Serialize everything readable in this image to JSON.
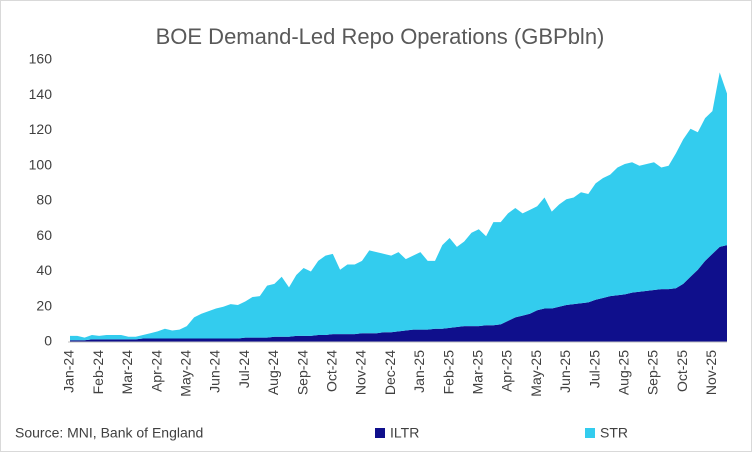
{
  "chart_data": {
    "type": "stacked-area",
    "title": "BOE Demand-Led Repo Operations (GBPbln)",
    "source": "Source: MNI, Bank of England",
    "categories": [
      "Jan-24",
      null,
      null,
      null,
      "Feb-24",
      null,
      null,
      null,
      "Mar-24",
      null,
      null,
      null,
      "Apr-24",
      null,
      null,
      null,
      "May-24",
      null,
      null,
      null,
      "Jun-24",
      null,
      null,
      null,
      "Jul-24",
      null,
      null,
      null,
      "Aug-24",
      null,
      null,
      null,
      "Sep-24",
      null,
      null,
      null,
      "Oct-24",
      null,
      null,
      null,
      "Nov-24",
      null,
      null,
      null,
      "Dec-24",
      null,
      null,
      null,
      "Jan-25",
      null,
      null,
      null,
      "Feb-25",
      null,
      null,
      null,
      "Mar-25",
      null,
      null,
      null,
      "Apr-25",
      null,
      null,
      null,
      "May-25",
      null,
      null,
      null,
      "Jun-25",
      null,
      null,
      null,
      "Jul-25",
      null,
      null,
      null,
      "Aug-25",
      null,
      null,
      null,
      "Sep-25",
      null,
      null,
      null,
      "Oct-25",
      null,
      null,
      null,
      "Nov-25",
      null,
      null
    ],
    "series": [
      {
        "name": "ILTR",
        "color": "#0f0f8c",
        "values": [
          1,
          1,
          1,
          1.5,
          1.5,
          1.5,
          1.5,
          1.5,
          1.5,
          1.5,
          2,
          2,
          2,
          2,
          2,
          2,
          2,
          2,
          2,
          2,
          2,
          2,
          2,
          2,
          2.5,
          2.5,
          2.5,
          2.5,
          3,
          3,
          3,
          3.5,
          3.5,
          3.5,
          4,
          4,
          4.5,
          4.5,
          4.5,
          4.5,
          5,
          5,
          5,
          5.5,
          5.5,
          6,
          6.5,
          7,
          7,
          7,
          7.5,
          7.5,
          8,
          8.5,
          9,
          9,
          9,
          9.5,
          9.5,
          10,
          12,
          14,
          15,
          16,
          18,
          19,
          19,
          20,
          21,
          21.5,
          22,
          22.5,
          24,
          25,
          26,
          26.5,
          27,
          28,
          28.5,
          29,
          29.5,
          30,
          30,
          30.5,
          33,
          37,
          41,
          46,
          50,
          54,
          55
        ]
      },
      {
        "name": "STR",
        "color": "#33ccee",
        "values": [
          2.5,
          2.5,
          1.5,
          2.5,
          2,
          2.5,
          2.5,
          2.5,
          1.5,
          1.5,
          2,
          3,
          4,
          5.5,
          4.5,
          5,
          7,
          12,
          14,
          15.5,
          17,
          18,
          19.5,
          19,
          20.5,
          23,
          23.5,
          29.5,
          30,
          34,
          28,
          34.5,
          38.5,
          36.5,
          42,
          45,
          45.5,
          36.5,
          39.5,
          39.5,
          41,
          47,
          46,
          44.5,
          43.5,
          45,
          40.5,
          42,
          44,
          39,
          38.5,
          47.5,
          51,
          45.5,
          48,
          53,
          55,
          50.5,
          58.5,
          58,
          61,
          62,
          58,
          59,
          59,
          63,
          55,
          58,
          60,
          60.5,
          63,
          61.5,
          66,
          68,
          69,
          72.5,
          74,
          74,
          71.5,
          72,
          72.5,
          69,
          70,
          76.5,
          82,
          84,
          78,
          81,
          81,
          99,
          86
        ]
      }
    ],
    "ylim": [
      0,
      160
    ],
    "yticks": [
      0,
      20,
      40,
      60,
      80,
      100,
      120,
      140,
      160
    ],
    "grid": false
  }
}
